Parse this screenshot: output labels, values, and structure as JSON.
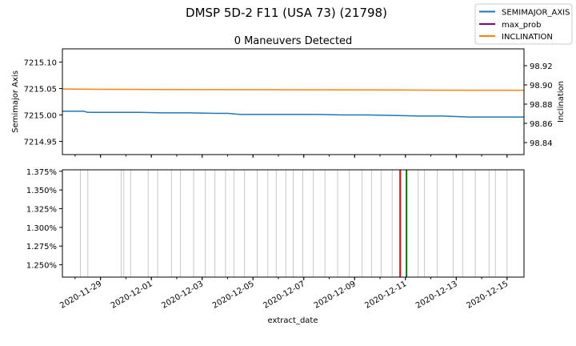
{
  "figure": {
    "suptitle": "DMSP 5D-2 F11 (USA 73) (21798)",
    "legend_position": "top-right",
    "legend": [
      {
        "label": "SEMIMAJOR_AXIS",
        "color": "#1f77b4"
      },
      {
        "label": "max_prob",
        "color": "#800080"
      },
      {
        "label": "INCLINATION",
        "color": "#ff7f0e"
      }
    ]
  },
  "chart_data": [
    {
      "type": "line",
      "title": "0 Maneuvers Detected",
      "xlabel": "",
      "x_range": [
        "2020-11-27T12:00",
        "2020-12-15T16:00"
      ],
      "grid": false,
      "left_axis": {
        "label": "Semimajor Axis",
        "ylim": [
          7214.925,
          7215.125
        ],
        "ticks": [
          "7214.95",
          "7215.00",
          "7215.05",
          "7215.10"
        ]
      },
      "right_axis": {
        "label": "Inclination",
        "ylim": [
          98.8275,
          98.9375
        ],
        "ticks": [
          "98.84",
          "98.86",
          "98.88",
          "98.90",
          "98.92"
        ]
      },
      "series": [
        {
          "name": "SEMIMAJOR_AXIS",
          "axis": "left",
          "color": "#1f77b4",
          "x": [
            "2020-11-27T12:00",
            "2020-11-28T00:00",
            "2020-11-28T08:00",
            "2020-11-28T12:00",
            "2020-11-29T12:00",
            "2020-11-30T12:00",
            "2020-12-01T12:00",
            "2020-12-02T12:00",
            "2020-12-03T12:00",
            "2020-12-04T00:00",
            "2020-12-04T12:00",
            "2020-12-05T12:00",
            "2020-12-06T12:00",
            "2020-12-07T12:00",
            "2020-12-08T12:00",
            "2020-12-09T12:00",
            "2020-12-10T12:00",
            "2020-12-11T12:00",
            "2020-12-12T12:00",
            "2020-12-13T12:00",
            "2020-12-14T12:00",
            "2020-12-15T16:00"
          ],
          "y": [
            7215.007,
            7215.007,
            7215.007,
            7215.005,
            7215.005,
            7215.005,
            7215.004,
            7215.004,
            7215.003,
            7215.003,
            7215.001,
            7215.001,
            7215.001,
            7215.001,
            7215.0,
            7215.0,
            7214.999,
            7214.998,
            7214.998,
            7214.996,
            7214.996,
            7214.996
          ]
        },
        {
          "name": "INCLINATION",
          "axis": "right",
          "color": "#ff7f0e",
          "x": [
            "2020-11-27T12:00",
            "2020-11-29T12:00",
            "2020-12-01T12:00",
            "2020-12-03T12:00",
            "2020-12-05T12:00",
            "2020-12-07T12:00",
            "2020-12-09T12:00",
            "2020-12-11T12:00",
            "2020-12-13T12:00",
            "2020-12-15T16:00"
          ],
          "y": [
            98.8957,
            98.8954,
            98.8952,
            98.8951,
            98.895,
            98.8949,
            98.8948,
            98.8946,
            98.8945,
            98.8944
          ]
        }
      ]
    },
    {
      "type": "line",
      "title": "",
      "xlabel": "extract_date",
      "x_range": [
        "2020-11-27T12:00",
        "2020-12-15T16:00"
      ],
      "grid": false,
      "y_axis": {
        "ylim": [
          1.2335,
          1.377
        ],
        "ticks": [
          "1.250%",
          "1.275%",
          "1.300%",
          "1.325%",
          "1.350%",
          "1.375%"
        ]
      },
      "x_ticks": [
        "2020-11-29",
        "2020-12-01",
        "2020-12-03",
        "2020-12-05",
        "2020-12-07",
        "2020-12-09",
        "2020-12-11",
        "2020-12-13",
        "2020-12-15"
      ],
      "observation_lines": {
        "color": "#c8c8c8",
        "x": [
          "2020-11-27T12:00",
          "2020-11-28T05:00",
          "2020-11-28T12:00",
          "2020-11-29T19:30",
          "2020-11-29T22:00",
          "2020-11-30T04:30",
          "2020-11-30T21:00",
          "2020-12-01T06:00",
          "2020-12-01T19:00",
          "2020-12-02T03:30",
          "2020-12-02T16:00",
          "2020-12-03T03:00",
          "2020-12-03T12:00",
          "2020-12-03T22:00",
          "2020-12-04T06:00",
          "2020-12-04T16:00",
          "2020-12-05T04:00",
          "2020-12-05T14:00",
          "2020-12-05T22:00",
          "2020-12-06T07:00",
          "2020-12-06T14:00",
          "2020-12-06T23:00",
          "2020-12-07T09:00",
          "2020-12-07T20:00",
          "2020-12-08T08:00",
          "2020-12-08T19:00",
          "2020-12-09T07:00",
          "2020-12-09T16:00",
          "2020-12-10T01:00",
          "2020-12-10T11:30",
          "2020-12-11T12:00",
          "2020-12-11T18:00",
          "2020-12-12T06:00",
          "2020-12-12T21:00",
          "2020-12-13T06:00",
          "2020-12-13T18:00",
          "2020-12-14T07:00",
          "2020-12-14T13:00",
          "2020-12-15T00:00"
        ]
      },
      "markers": [
        {
          "x": "2020-12-10T19:00",
          "color": "#ff0000"
        },
        {
          "x": "2020-12-11T01:00",
          "color": "#008000"
        }
      ]
    }
  ]
}
